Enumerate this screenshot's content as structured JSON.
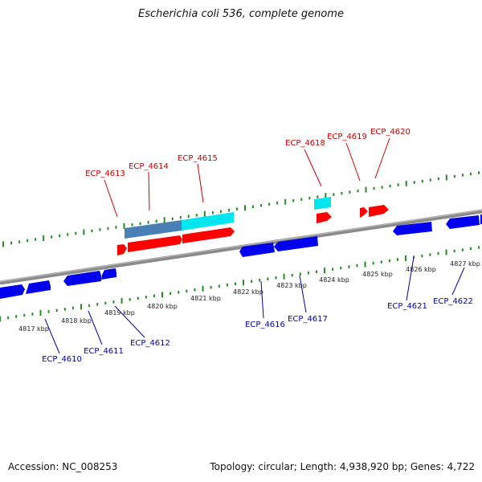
{
  "title": "Escherichia coli 536, complete genome",
  "footer": {
    "accession": "Accession: NC_008253",
    "summary": "Topology: circular; Length: 4,938,920 bp; Genes: 4,722"
  },
  "colors": {
    "forward_gene": "#ff0000",
    "reverse_gene": "#0000ee",
    "rna": "#00e5ee",
    "backbone": "#888888",
    "ticks": "#228b22",
    "forward_label": "#cc0000",
    "reverse_label": "#0000aa"
  },
  "kbp_labels": [
    "4817 kbp",
    "4818 kbp",
    "4819 kbp",
    "4820 kbp",
    "4821 kbp",
    "4822 kbp",
    "4823 kbp",
    "4824 kbp",
    "4825 kbp",
    "4826 kbp",
    "4827 kbp"
  ],
  "forward_gene_labels": [
    "ECP_4613",
    "ECP_4614",
    "ECP_4615",
    "ECP_4618",
    "ECP_4619",
    "ECP_4620"
  ],
  "reverse_gene_labels": [
    "ECP_4610",
    "ECP_4611",
    "ECP_4612",
    "ECP_4616",
    "ECP_4617",
    "ECP_4621",
    "ECP_4622"
  ]
}
